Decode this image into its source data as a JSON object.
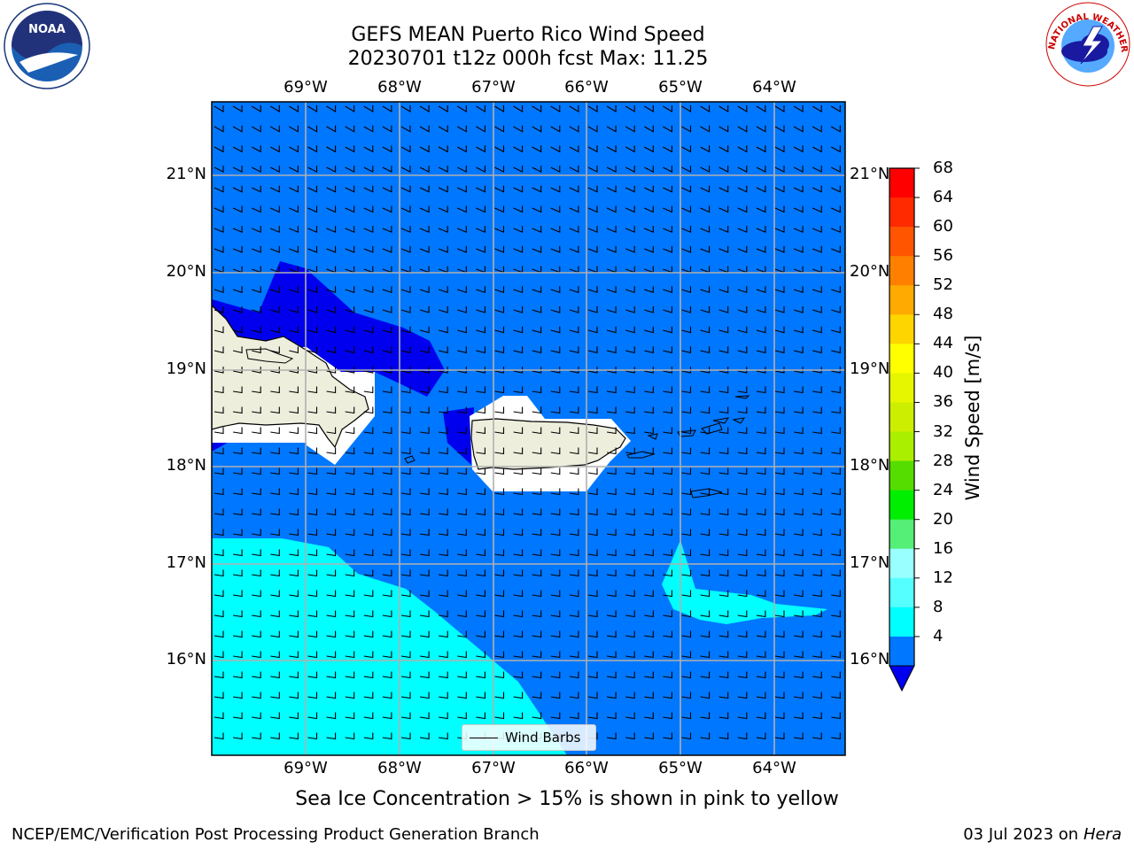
{
  "title": {
    "line1": "GEFS MEAN Puerto Rico Wind Speed",
    "line2": "20230701 t12z 000h fcst   Max: 11.25"
  },
  "map": {
    "lon_ticks": [
      "69°W",
      "68°W",
      "67°W",
      "66°W",
      "65°W",
      "64°W"
    ],
    "lat_ticks": [
      "21°N",
      "20°N",
      "19°N",
      "18°N",
      "17°N",
      "16°N"
    ],
    "legend_label": "Wind Barbs"
  },
  "colorbar": {
    "label": "Wind Speed [m/s]",
    "ticks": [
      "68",
      "64",
      "60",
      "56",
      "52",
      "48",
      "44",
      "40",
      "36",
      "32",
      "28",
      "24",
      "20",
      "16",
      "12",
      "8",
      "4"
    ],
    "colors": [
      "#ff0000",
      "#ff2a00",
      "#ff5500",
      "#ff8000",
      "#ffaa00",
      "#ffd500",
      "#ffff00",
      "#e6f500",
      "#ccee00",
      "#aaee00",
      "#55dd00",
      "#00ee00",
      "#55ee77",
      "#99ffff",
      "#55ffff",
      "#00ffff",
      "#0077ff"
    ],
    "extend_color": "#0000ee"
  },
  "subtitle": "Sea Ice Concentration > 15% is shown in pink to yellow",
  "footer": {
    "credit": "NCEP/EMC/Verification Post Processing Product Generation Branch",
    "date_prefix": "03 Jul 2023 on ",
    "date_host": "Hera"
  },
  "logos": {
    "left": "NOAA",
    "right": "NATIONAL WEATHER SERVICE"
  }
}
